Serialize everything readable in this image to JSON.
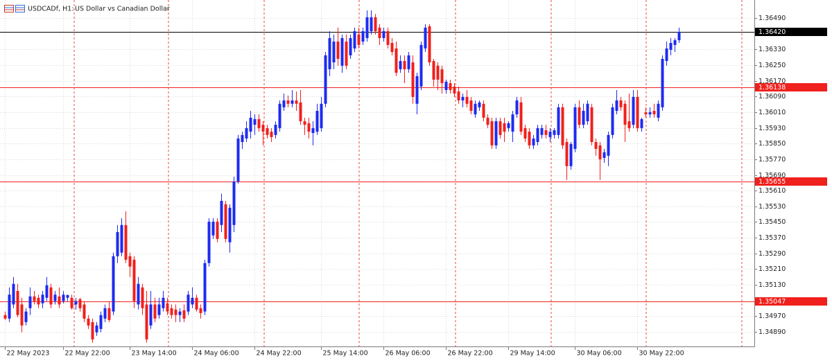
{
  "chart_data": {
    "type": "candlestick",
    "title": "USDCADf, H1:",
    "subtitle": "US Dollar vs Canadian Dollar",
    "up_color": "#1e2bf0",
    "down_color": "#f0201c",
    "grid": true,
    "ylim": [
      1.34816,
      1.36582
    ],
    "yticks": [
      {
        "value": 1.3649,
        "label": "1.36490"
      },
      {
        "value": 1.3633,
        "label": "1.36330"
      },
      {
        "value": 1.3625,
        "label": "1.36250"
      },
      {
        "value": 1.3617,
        "label": "1.36170"
      },
      {
        "value": 1.3609,
        "label": "1.36090"
      },
      {
        "value": 1.3601,
        "label": "1.36010"
      },
      {
        "value": 1.3593,
        "label": "1.35930"
      },
      {
        "value": 1.3585,
        "label": "1.35850"
      },
      {
        "value": 1.3577,
        "label": "1.35770"
      },
      {
        "value": 1.3569,
        "label": "1.35690"
      },
      {
        "value": 1.3561,
        "label": "1.35610"
      },
      {
        "value": 1.3553,
        "label": "1.35530"
      },
      {
        "value": 1.3545,
        "label": "1.35450"
      },
      {
        "value": 1.3537,
        "label": "1.35370"
      },
      {
        "value": 1.3529,
        "label": "1.35290"
      },
      {
        "value": 1.3521,
        "label": "1.35210"
      },
      {
        "value": 1.3513,
        "label": "1.35130"
      },
      {
        "value": 1.3497,
        "label": "1.34970"
      },
      {
        "value": 1.3489,
        "label": "1.34890"
      }
    ],
    "xlim": [
      -1.17,
      180.2
    ],
    "xticks": [
      {
        "value": 0,
        "label": "22 May 2023"
      },
      {
        "value": 14,
        "label": "22 May 22:00"
      },
      {
        "value": 30,
        "label": "23 May 14:00"
      },
      {
        "value": 45,
        "label": "24 May 06:00"
      },
      {
        "value": 60,
        "label": "24 May 22:00"
      },
      {
        "value": 76,
        "label": "25 May 14:00"
      },
      {
        "value": 91,
        "label": "26 May 06:00"
      },
      {
        "value": 106,
        "label": "26 May 22:00"
      },
      {
        "value": 121,
        "label": "29 May 14:00"
      },
      {
        "value": 137,
        "label": "30 May 06:00"
      },
      {
        "value": 152,
        "label": "30 May 22:00"
      }
    ],
    "price_lines": [
      {
        "value": 1.3642,
        "label": "1.36420",
        "color": "#000000"
      },
      {
        "value": 1.36138,
        "label": "1.36138",
        "color": "#f0201c"
      },
      {
        "value": 1.35655,
        "label": "1.35655",
        "color": "#f0201c"
      },
      {
        "value": 1.35047,
        "label": "1.35047",
        "color": "#f0201c"
      }
    ],
    "open": [
      1.34976,
      1.34958,
      1.3503,
      1.35099,
      1.3503,
      1.3494,
      1.35011,
      1.35071,
      1.35064,
      1.35036,
      1.35064,
      1.35117,
      1.35047,
      1.35071,
      1.35047,
      1.35064,
      1.35064,
      1.3503,
      1.35057,
      1.3503,
      1.34958,
      1.3494,
      1.34888,
      1.34905,
      1.34958,
      1.35011,
      1.34994,
      1.35276,
      1.35294,
      1.35435,
      1.35276,
      1.35258,
      1.3503,
      1.35117,
      1.3503,
      1.34923,
      1.3503,
      1.34976,
      1.35011,
      1.35036,
      1.35011,
      1.35004,
      1.34976,
      1.35,
      1.34994,
      1.3503,
      1.35064,
      1.35011,
      1.34994,
      1.35241,
      1.35382,
      1.35452,
      1.35435,
      1.35541,
      1.35347,
      1.35435,
      1.35657,
      1.35858,
      1.35876,
      1.35911,
      1.35946,
      1.35975,
      1.35946,
      1.35929,
      1.35911,
      1.35894,
      1.35929,
      1.36035,
      1.3607,
      1.36053,
      1.3607,
      1.3606,
      1.35964,
      1.35954,
      1.35904,
      1.35911,
      1.35929,
      1.36053,
      1.36229,
      1.36264,
      1.3637,
      1.36247,
      1.3637,
      1.363,
      1.36335,
      1.36406,
      1.3637,
      1.36388,
      1.36423,
      1.36494,
      1.36441,
      1.36388,
      1.36423,
      1.36363,
      1.36335,
      1.36229,
      1.36271,
      1.36229,
      1.36264,
      1.36053,
      1.36141,
      1.36335,
      1.36448,
      1.36271,
      1.36247,
      1.36229,
      1.36123,
      1.36158,
      1.36141,
      1.36116,
      1.3607,
      1.36088,
      1.3607,
      1.35999,
      1.36035,
      1.36053,
      1.35982,
      1.35964,
      1.35841,
      1.35964,
      1.35954,
      1.35929,
      1.35911,
      1.35999,
      1.3606,
      1.35929,
      1.35911,
      1.35841,
      1.35858,
      1.35894,
      1.35918,
      1.35883,
      1.35894,
      1.35894,
      1.36035,
      1.35858,
      1.35735,
      1.35823,
      1.36035,
      1.35946,
      1.35964,
      1.36035,
      1.35858,
      1.35841,
      1.35777,
      1.35788,
      1.35894,
      1.36017,
      1.3607,
      1.36053,
      1.35964,
      1.35946,
      1.36088,
      1.35929,
      1.3601,
      1.35999,
      1.36017,
      1.35982,
      1.36035,
      1.36271,
      1.36328,
      1.36353,
      1.36377
    ],
    "high": [
      1.34994,
      1.35117,
      1.3517,
      1.35135,
      1.35064,
      1.35011,
      1.35117,
      1.35099,
      1.3508,
      1.35099,
      1.3517,
      1.35135,
      1.35099,
      1.35117,
      1.35099,
      1.3508,
      1.3508,
      1.35064,
      1.35064,
      1.35047,
      1.34976,
      1.34958,
      1.3494,
      1.34994,
      1.3503,
      1.35047,
      1.35294,
      1.35435,
      1.3547,
      1.35505,
      1.35294,
      1.35276,
      1.3517,
      1.35135,
      1.35099,
      1.35099,
      1.35064,
      1.35064,
      1.35099,
      1.35064,
      1.3503,
      1.3503,
      1.35011,
      1.3503,
      1.35099,
      1.35117,
      1.3508,
      1.3503,
      1.35258,
      1.3547,
      1.3547,
      1.3547,
      1.35595,
      1.35558,
      1.35541,
      1.35682,
      1.35894,
      1.35911,
      1.35964,
      1.36017,
      1.35999,
      1.35999,
      1.35964,
      1.35946,
      1.35929,
      1.35964,
      1.3607,
      1.36105,
      1.36095,
      1.36123,
      1.36116,
      1.36123,
      1.35982,
      1.35982,
      1.35964,
      1.36053,
      1.36088,
      1.36317,
      1.36423,
      1.36406,
      1.36441,
      1.36406,
      1.36406,
      1.36406,
      1.36441,
      1.36441,
      1.36441,
      1.36529,
      1.36529,
      1.36511,
      1.36459,
      1.36441,
      1.36441,
      1.36388,
      1.3637,
      1.363,
      1.363,
      1.36317,
      1.363,
      1.36211,
      1.3637,
      1.36459,
      1.36459,
      1.36282,
      1.36264,
      1.36247,
      1.36176,
      1.36176,
      1.36158,
      1.36141,
      1.36105,
      1.36123,
      1.36088,
      1.3607,
      1.3607,
      1.3607,
      1.35999,
      1.35982,
      1.35982,
      1.35982,
      1.35982,
      1.35964,
      1.36017,
      1.36088,
      1.36088,
      1.35946,
      1.35929,
      1.35894,
      1.35946,
      1.35946,
      1.35946,
      1.35929,
      1.35929,
      1.36053,
      1.36053,
      1.35876,
      1.35858,
      1.36053,
      1.3607,
      1.36053,
      1.3607,
      1.36053,
      1.35876,
      1.35858,
      1.35823,
      1.35911,
      1.36053,
      1.36123,
      1.36088,
      1.3607,
      1.36105,
      1.36123,
      1.36123,
      1.35982,
      1.36035,
      1.36035,
      1.36053,
      1.3607,
      1.363,
      1.3637,
      1.36388,
      1.36388,
      1.36441
    ],
    "low": [
      1.34951,
      1.3494,
      1.35011,
      1.34965,
      1.34888,
      1.34923,
      1.34976,
      1.3503,
      1.35011,
      1.35011,
      1.35047,
      1.35011,
      1.3503,
      1.35011,
      1.35036,
      1.35047,
      1.35004,
      1.35004,
      1.34994,
      1.3494,
      1.34905,
      1.34835,
      1.3487,
      1.34888,
      1.3494,
      1.3494,
      1.34976,
      1.35241,
      1.35276,
      1.35241,
      1.3517,
      1.35011,
      1.35004,
      1.34976,
      1.34835,
      1.34905,
      1.3494,
      1.34958,
      1.34994,
      1.34976,
      1.34958,
      1.3494,
      1.3494,
      1.3494,
      1.34976,
      1.35011,
      1.34994,
      1.34958,
      1.34976,
      1.35223,
      1.35364,
      1.35347,
      1.35399,
      1.35347,
      1.35294,
      1.35399,
      1.35646,
      1.35823,
      1.35858,
      1.35876,
      1.35894,
      1.35911,
      1.35841,
      1.35876,
      1.35858,
      1.35876,
      1.35911,
      1.36017,
      1.36035,
      1.36035,
      1.36017,
      1.35946,
      1.35894,
      1.35876,
      1.35841,
      1.35894,
      1.35911,
      1.36035,
      1.36194,
      1.36229,
      1.36247,
      1.36211,
      1.36229,
      1.36282,
      1.36317,
      1.36335,
      1.36353,
      1.3637,
      1.36406,
      1.36406,
      1.36353,
      1.3637,
      1.36335,
      1.363,
      1.36194,
      1.36211,
      1.36158,
      1.36211,
      1.36053,
      1.35999,
      1.36123,
      1.36317,
      1.36247,
      1.36141,
      1.36123,
      1.36105,
      1.36105,
      1.36105,
      1.36088,
      1.36053,
      1.36035,
      1.36035,
      1.35999,
      1.35982,
      1.36017,
      1.35964,
      1.35929,
      1.35823,
      1.35823,
      1.35876,
      1.35858,
      1.35911,
      1.35858,
      1.35982,
      1.35894,
      1.35858,
      1.35823,
      1.35823,
      1.35841,
      1.35876,
      1.35876,
      1.35858,
      1.35876,
      1.35876,
      1.35823,
      1.35664,
      1.35717,
      1.35806,
      1.35929,
      1.35929,
      1.35946,
      1.35841,
      1.35788,
      1.35664,
      1.35752,
      1.35735,
      1.35876,
      1.35999,
      1.36017,
      1.35858,
      1.35911,
      1.35929,
      1.35911,
      1.35911,
      1.35982,
      1.35982,
      1.35982,
      1.35964,
      1.36017,
      1.36247,
      1.363,
      1.36317,
      1.36363
    ],
    "close": [
      1.34958,
      1.3508,
      1.35135,
      1.34976,
      1.34923,
      1.34994,
      1.35071,
      1.35047,
      1.3503,
      1.3508,
      1.35128,
      1.3503,
      1.3508,
      1.3503,
      1.3508,
      1.35078,
      1.35011,
      1.35047,
      1.35011,
      1.34958,
      1.34923,
      1.34852,
      1.34923,
      1.34976,
      1.35011,
      1.34951,
      1.35276,
      1.35399,
      1.35435,
      1.35258,
      1.35223,
      1.35047,
      1.35135,
      1.35011,
      1.34852,
      1.3503,
      1.34958,
      1.3503,
      1.35064,
      1.34994,
      1.34976,
      1.34976,
      1.34994,
      1.34958,
      1.3508,
      1.35064,
      1.35004,
      1.34986,
      1.35241,
      1.35452,
      1.35452,
      1.35364,
      1.35558,
      1.35364,
      1.35523,
      1.35657,
      1.35876,
      1.35894,
      1.35929,
      1.35982,
      1.35975,
      1.35929,
      1.35911,
      1.35894,
      1.35883,
      1.35946,
      1.36053,
      1.3607,
      1.36053,
      1.3607,
      1.36053,
      1.35964,
      1.35946,
      1.35911,
      1.35929,
      1.36017,
      1.36053,
      1.363,
      1.36388,
      1.3637,
      1.36282,
      1.36388,
      1.36247,
      1.36388,
      1.36423,
      1.36353,
      1.36423,
      1.36494,
      1.36494,
      1.36423,
      1.36388,
      1.36423,
      1.36353,
      1.36317,
      1.36211,
      1.36271,
      1.36229,
      1.363,
      1.36088,
      1.36194,
      1.36353,
      1.36441,
      1.36264,
      1.36176,
      1.36176,
      1.36158,
      1.36165,
      1.36123,
      1.36105,
      1.3607,
      1.36088,
      1.36053,
      1.36017,
      1.36053,
      1.3606,
      1.35982,
      1.35946,
      1.35841,
      1.35964,
      1.35894,
      1.35911,
      1.35954,
      1.35999,
      1.3607,
      1.35911,
      1.35876,
      1.35841,
      1.35876,
      1.35929,
      1.35929,
      1.35894,
      1.35911,
      1.35918,
      1.36035,
      1.35841,
      1.35735,
      1.35848,
      1.36035,
      1.35946,
      1.36017,
      1.36053,
      1.35858,
      1.35823,
      1.3577,
      1.35806,
      1.35894,
      1.36035,
      1.3607,
      1.36035,
      1.35946,
      1.35929,
      1.36088,
      1.35929,
      1.35975,
      1.35999,
      1.3601,
      1.35999,
      1.36053,
      1.36282,
      1.36335,
      1.36363,
      1.36377,
      1.3642
    ]
  }
}
